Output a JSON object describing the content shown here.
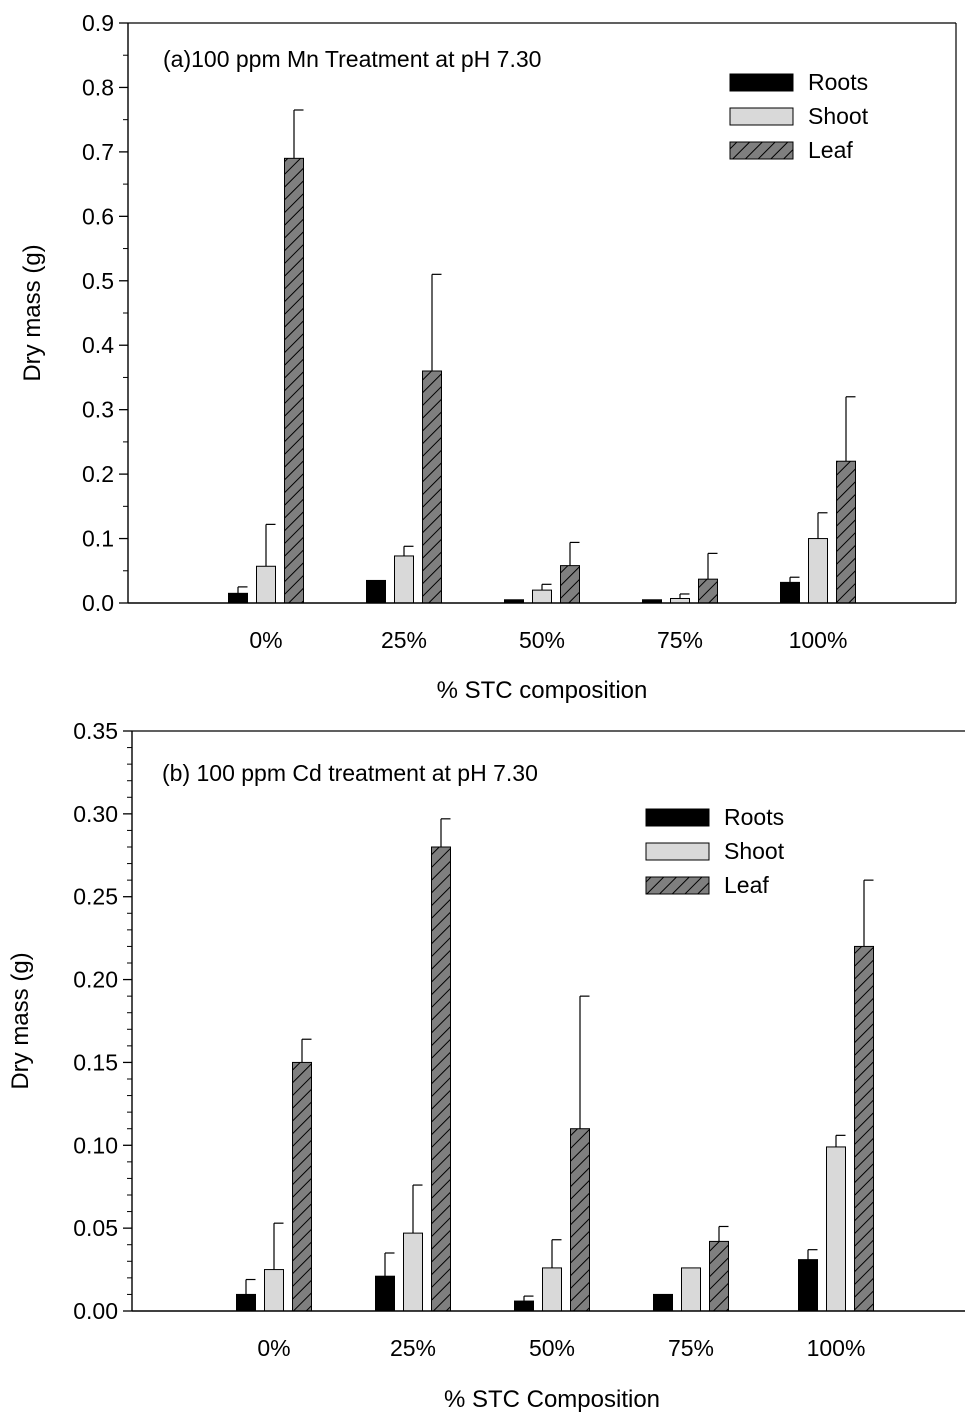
{
  "chart_data": [
    {
      "type": "bar",
      "title": "(a)100 ppm Mn Treatment at pH 7.30",
      "xlabel": "% STC  composition",
      "ylabel": "Dry mass (g)",
      "ylim": [
        0,
        0.9
      ],
      "yticks": [
        "0.0",
        "0.1",
        "0.2",
        "0.3",
        "0.4",
        "0.5",
        "0.6",
        "0.7",
        "0.8",
        "0.9"
      ],
      "categories": [
        "0%",
        "25%",
        "50%",
        "75%",
        "100%"
      ],
      "legend_position": "top-right",
      "series": [
        {
          "name": "Roots",
          "values": [
            0.015,
            0.035,
            0.005,
            0.005,
            0.032
          ],
          "errors": [
            0.01,
            0.0,
            0.0,
            0.0,
            0.008
          ]
        },
        {
          "name": "Shoot",
          "values": [
            0.057,
            0.073,
            0.02,
            0.007,
            0.1
          ],
          "errors": [
            0.065,
            0.015,
            0.009,
            0.007,
            0.04
          ]
        },
        {
          "name": "Leaf",
          "values": [
            0.69,
            0.36,
            0.058,
            0.037,
            0.22
          ],
          "errors": [
            0.075,
            0.15,
            0.036,
            0.04,
            0.1
          ]
        }
      ]
    },
    {
      "type": "bar",
      "title": "(b) 100 ppm Cd treatment at pH 7.30",
      "xlabel": "% STC Composition",
      "ylabel": "Dry mass (g)",
      "ylim": [
        0,
        0.35
      ],
      "yticks": [
        "0.00",
        "0.05",
        "0.10",
        "0.15",
        "0.20",
        "0.25",
        "0.30",
        "0.35"
      ],
      "categories": [
        "0%",
        "25%",
        "50%",
        "75%",
        "100%"
      ],
      "legend_position": "top-right",
      "series": [
        {
          "name": "Roots",
          "values": [
            0.01,
            0.021,
            0.006,
            0.01,
            0.031
          ],
          "errors": [
            0.009,
            0.014,
            0.003,
            0.0,
            0.006
          ]
        },
        {
          "name": "Shoot",
          "values": [
            0.025,
            0.047,
            0.026,
            0.026,
            0.099
          ],
          "errors": [
            0.028,
            0.029,
            0.017,
            0.0,
            0.007
          ]
        },
        {
          "name": "Leaf",
          "values": [
            0.15,
            0.28,
            0.11,
            0.042,
            0.22
          ],
          "errors": [
            0.014,
            0.017,
            0.08,
            0.009,
            0.04
          ]
        }
      ]
    }
  ],
  "colors": {
    "roots": "#000000",
    "shoot": "#d9d9d9",
    "leaf": "#7f7f7f",
    "axis": "#000000"
  }
}
